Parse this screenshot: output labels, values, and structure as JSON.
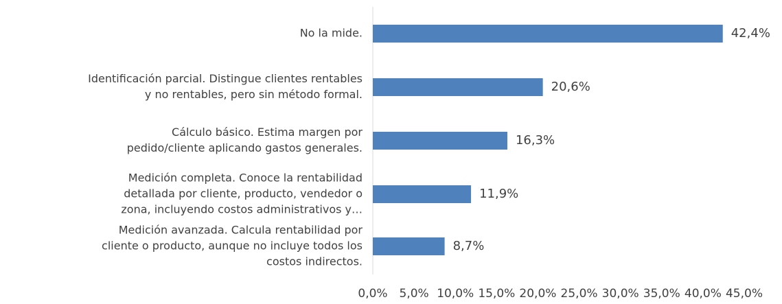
{
  "chart_data": {
    "type": "bar",
    "orientation": "horizontal",
    "categories": [
      [
        "No la mide."
      ],
      [
        "Identificación parcial. Distingue clientes rentables",
        "y no rentables, pero sin método formal."
      ],
      [
        "Cálculo básico. Estima margen por",
        "pedido/cliente aplicando gastos generales."
      ],
      [
        "Medición completa. Conoce la rentabilidad",
        "detallada por cliente, producto, vendedor o",
        "zona, incluyendo costos administrativos y…"
      ],
      [
        "Medición avanzada. Calcula rentabilidad por",
        "cliente o producto, aunque no incluye todos los",
        "costos indirectos."
      ]
    ],
    "values": [
      42.4,
      20.6,
      16.3,
      11.9,
      8.7
    ],
    "value_labels": [
      "42,4%",
      "20,6%",
      "16,3%",
      "11,9%",
      "8,7%"
    ],
    "color": "#4f81bd",
    "xlim": [
      0,
      45
    ],
    "xticks": [
      {
        "value": 0,
        "label": "0,0%"
      },
      {
        "value": 5,
        "label": "5,0%"
      },
      {
        "value": 10,
        "label": "10,0%"
      },
      {
        "value": 15,
        "label": "15,0%"
      },
      {
        "value": 20,
        "label": "20,0%"
      },
      {
        "value": 25,
        "label": "25,0%"
      },
      {
        "value": 30,
        "label": "30,0%"
      },
      {
        "value": 35,
        "label": "35,0%"
      },
      {
        "value": 40,
        "label": "40,0%"
      },
      {
        "value": 45,
        "label": "45,0%"
      }
    ],
    "grid": false
  }
}
